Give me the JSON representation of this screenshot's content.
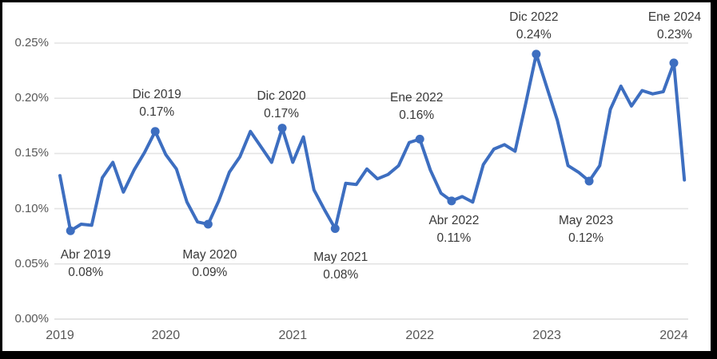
{
  "chart_data": {
    "type": "line",
    "title": "",
    "xlabel": "",
    "ylabel": "",
    "unit": "%",
    "grid": "horizontal",
    "legend": "none",
    "ylim": [
      0,
      0.25
    ],
    "y_tick_step": 0.05,
    "categories": [
      "Mar 2019",
      "Abr 2019",
      "May 2019",
      "Jun 2019",
      "Jul 2019",
      "Ago 2019",
      "Sep 2019",
      "Oct 2019",
      "Nov 2019",
      "Dic 2019",
      "Ene 2020",
      "Feb 2020",
      "Mar 2020",
      "Abr 2020",
      "May 2020",
      "Jun 2020",
      "Jul 2020",
      "Ago 2020",
      "Sep 2020",
      "Oct 2020",
      "Nov 2020",
      "Dic 2020",
      "Ene 2021",
      "Feb 2021",
      "Mar 2021",
      "Abr 2021",
      "May 2021",
      "Jun 2021",
      "Jul 2021",
      "Ago 2021",
      "Sep 2021",
      "Oct 2021",
      "Nov 2021",
      "Dic 2021",
      "Ene 2022",
      "Feb 2022",
      "Mar 2022",
      "Abr 2022",
      "May 2022",
      "Jun 2022",
      "Jul 2022",
      "Ago 2022",
      "Sep 2022",
      "Oct 2022",
      "Nov 2022",
      "Dic 2022",
      "Ene 2023",
      "Feb 2023",
      "Mar 2023",
      "Abr 2023",
      "May 2023",
      "Jun 2023",
      "Jul 2023",
      "Ago 2023",
      "Sep 2023",
      "Oct 2023",
      "Nov 2023",
      "Dic 2023",
      "Ene 2024",
      "Feb 2024"
    ],
    "values": [
      0.13,
      0.08,
      0.086,
      0.085,
      0.128,
      0.142,
      0.115,
      0.135,
      0.151,
      0.17,
      0.149,
      0.136,
      0.106,
      0.088,
      0.086,
      0.107,
      0.133,
      0.147,
      0.17,
      0.156,
      0.142,
      0.173,
      0.142,
      0.165,
      0.117,
      0.099,
      0.082,
      0.123,
      0.122,
      0.136,
      0.127,
      0.131,
      0.139,
      0.16,
      0.163,
      0.135,
      0.114,
      0.107,
      0.111,
      0.106,
      0.14,
      0.154,
      0.158,
      0.152,
      0.195,
      0.24,
      0.21,
      0.18,
      0.139,
      0.133,
      0.125,
      0.139,
      0.19,
      0.211,
      0.193,
      0.207,
      0.204,
      0.206,
      0.232,
      0.126
    ],
    "y_ticks": [
      {
        "label": "0.00%",
        "value": 0
      },
      {
        "label": "0.05%",
        "value": 0.05
      },
      {
        "label": "0.10%",
        "value": 0.1
      },
      {
        "label": "0.15%",
        "value": 0.15
      },
      {
        "label": "0.20%",
        "value": 0.2
      },
      {
        "label": "0.25%",
        "value": 0.25
      }
    ],
    "x_ticks": [
      {
        "label": "2019",
        "index": 0
      },
      {
        "label": "2020",
        "index": 10
      },
      {
        "label": "2021",
        "index": 22
      },
      {
        "label": "2022",
        "index": 34
      },
      {
        "label": "2023",
        "index": 46
      },
      {
        "label": "2024",
        "index": 58
      }
    ],
    "annotations": [
      {
        "label": "Abr 2019",
        "value": "0.08%",
        "index": 1,
        "placement": "below"
      },
      {
        "label": "Dic 2019",
        "value": "0.17%",
        "index": 9,
        "placement": "above"
      },
      {
        "label": "May 2020",
        "value": "0.09%",
        "index": 14,
        "placement": "below"
      },
      {
        "label": "Dic 2020",
        "value": "0.17%",
        "index": 21,
        "placement": "above"
      },
      {
        "label": "May 2021",
        "value": "0.08%",
        "index": 26,
        "placement": "below"
      },
      {
        "label": "Ene 2022",
        "value": "0.16%",
        "index": 34,
        "placement": "above"
      },
      {
        "label": "Abr 2022",
        "value": "0.11%",
        "index": 37,
        "placement": "below"
      },
      {
        "label": "Dic 2022",
        "value": "0.24%",
        "index": 45,
        "placement": "above"
      },
      {
        "label": "May 2023",
        "value": "0.12%",
        "index": 50,
        "placement": "below"
      },
      {
        "label": "Ene 2024",
        "value": "0.23%",
        "index": 58,
        "placement": "above"
      }
    ],
    "colors": {
      "line": "#3d6ec0",
      "marker": "#3d6ec0",
      "grid": "#e4e4e4",
      "baseline": "#dcdcdc",
      "axis_text": "#575757",
      "annotation_text": "#383838",
      "background": "#ffffff",
      "frame": "#000000"
    }
  }
}
